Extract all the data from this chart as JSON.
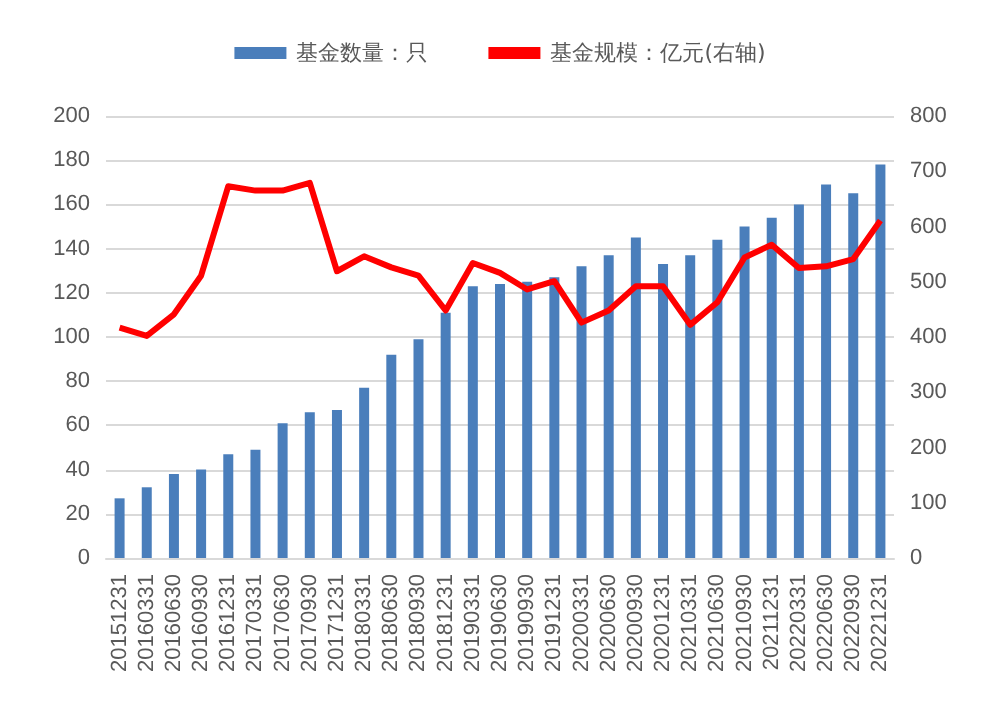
{
  "chart_data": {
    "type": "bar",
    "categories": [
      "20151231",
      "20160331",
      "20160630",
      "20160930",
      "20161231",
      "20170331",
      "20170630",
      "20170930",
      "20171231",
      "20180331",
      "20180630",
      "20180930",
      "20181231",
      "20190331",
      "20190630",
      "20190930",
      "20191231",
      "20200331",
      "20200630",
      "20200930",
      "20201231",
      "20210331",
      "20210630",
      "20210930",
      "20211231",
      "20220331",
      "20220630",
      "20220930",
      "20221231"
    ],
    "series": [
      {
        "name": "基金数量：只",
        "color": "#4a7ebb",
        "values": [
          27,
          32,
          38,
          40,
          47,
          49,
          61,
          66,
          67,
          77,
          92,
          99,
          111,
          123,
          124,
          125,
          127,
          132,
          137,
          145,
          133,
          137,
          144,
          150,
          154,
          160,
          169,
          165,
          178
        ]
      },
      {
        "name": "基金规模：亿元(右轴)",
        "type": "line",
        "axis": "y2",
        "color": "#ff0000",
        "values": [
          417,
          402,
          441,
          511,
          673,
          665,
          665,
          679,
          519,
          546,
          526,
          511,
          448,
          534,
          516,
          486,
          501,
          426,
          448,
          492,
          492,
          422,
          463,
          544,
          567,
          525,
          528,
          541,
          611
        ]
      }
    ],
    "ylim": [
      0,
      200
    ],
    "yticks": [
      0,
      20,
      40,
      60,
      80,
      100,
      120,
      140,
      160,
      180,
      200
    ],
    "y2lim": [
      0,
      800
    ],
    "y2ticks": [
      0,
      100,
      200,
      300,
      400,
      500,
      600,
      700,
      800
    ],
    "grid": "y",
    "legend": "top",
    "marker": "none"
  }
}
